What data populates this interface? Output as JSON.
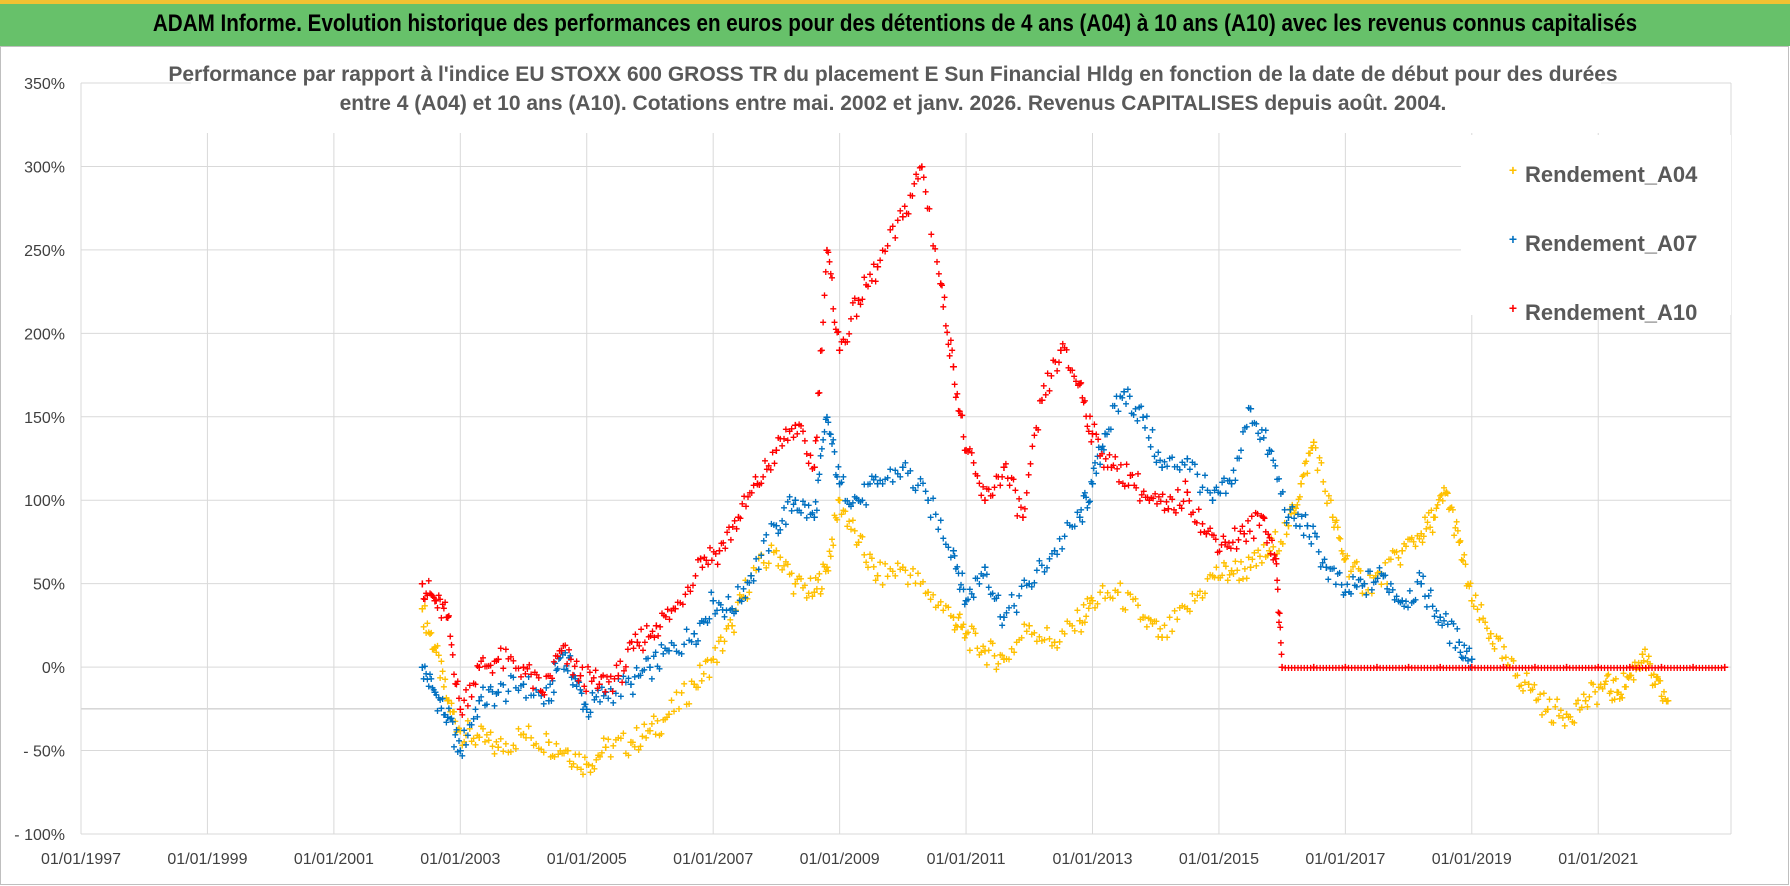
{
  "banner": {
    "title": "ADAM Informe. Evolution historique des performances en euros pour des détentions de 4 ans (A04) à 10 ans (A10) avec les revenus connus capitalisés"
  },
  "colors": {
    "banner_bg": "#67c16a",
    "banner_accent": "#f1c232",
    "A04": "#ffc000",
    "A07": "#0070c0",
    "A10": "#ff0000"
  },
  "chart_data": {
    "type": "scatter",
    "title_line1": "Performance par rapport à l'indice EU STOXX 600 GROSS TR  du placement E Sun Financial Hldg  en fonction de la date de début pour des durées",
    "title_line2": "entre 4 (A04) et 10 ans (A10).  Cotations entre mai. 2002 et janv. 2026. Revenus CAPITALISES depuis août. 2004.",
    "xlabel": "",
    "ylabel": "",
    "xlim": [
      1997.0,
      2023.1
    ],
    "ylim": [
      -100,
      350
    ],
    "grid": true,
    "legend_position": "top-right",
    "y_ticks": [
      -100,
      -50,
      0,
      50,
      100,
      150,
      200,
      250,
      300,
      350
    ],
    "y_tick_labels": [
      "- 100%",
      "- 50%",
      "0%",
      "50%",
      "100%",
      "150%",
      "200%",
      "250%",
      "300%",
      "350%"
    ],
    "x_ticks": [
      1997,
      1999,
      2001,
      2003,
      2005,
      2007,
      2009,
      2011,
      2013,
      2015,
      2017,
      2019,
      2021
    ],
    "x_tick_labels": [
      "01/01/1997",
      "01/01/1999",
      "01/01/2001",
      "01/01/2003",
      "01/01/2005",
      "01/01/2007",
      "01/01/2009",
      "01/01/2011",
      "01/01/2013",
      "01/01/2015",
      "01/01/2017",
      "01/01/2019",
      "01/01/2021"
    ],
    "series": [
      {
        "name": "Rendement_A04",
        "color": "#ffc000",
        "x": [
          2002.4,
          2002.6,
          2002.8,
          2003.0,
          2003.3,
          2003.6,
          2004.0,
          2004.4,
          2004.7,
          2005.0,
          2005.3,
          2005.7,
          2006.0,
          2006.3,
          2006.7,
          2007.0,
          2007.3,
          2007.6,
          2008.0,
          2008.3,
          2008.6,
          2008.8,
          2009.0,
          2009.3,
          2009.6,
          2010.0,
          2010.4,
          2010.8,
          2011.0,
          2011.3,
          2011.6,
          2012.0,
          2012.4,
          2012.8,
          2013.0,
          2013.4,
          2013.8,
          2014.1,
          2014.5,
          2014.9,
          2015.2,
          2015.5,
          2015.8,
          2016.1,
          2016.3,
          2016.5,
          2016.8,
          2017.0,
          2017.3,
          2017.6,
          2017.9,
          2018.2,
          2018.4,
          2018.6,
          2018.8,
          2019.0,
          2019.3,
          2019.6,
          2019.9,
          2020.2,
          2020.5,
          2020.8,
          2021.1,
          2021.3,
          2021.5,
          2021.7,
          2021.9,
          2022.1
        ],
        "y": [
          35,
          12,
          -20,
          -38,
          -42,
          -48,
          -40,
          -45,
          -50,
          -58,
          -48,
          -45,
          -38,
          -28,
          -10,
          5,
          25,
          55,
          70,
          50,
          45,
          60,
          100,
          75,
          55,
          60,
          45,
          30,
          20,
          10,
          5,
          25,
          15,
          28,
          40,
          45,
          30,
          18,
          35,
          55,
          58,
          60,
          70,
          85,
          110,
          135,
          90,
          65,
          50,
          55,
          70,
          80,
          90,
          105,
          75,
          40,
          20,
          0,
          -10,
          -25,
          -28,
          -20,
          -10,
          -15,
          -5,
          8,
          -10,
          -20
        ]
      },
      {
        "name": "Rendement_A07",
        "color": "#0070c0",
        "x": [
          2002.4,
          2002.6,
          2002.8,
          2003.0,
          2003.3,
          2003.6,
          2004.0,
          2004.4,
          2004.6,
          2004.8,
          2005.0,
          2005.3,
          2005.7,
          2006.0,
          2006.3,
          2006.7,
          2007.0,
          2007.3,
          2007.6,
          2008.0,
          2008.3,
          2008.6,
          2008.8,
          2009.0,
          2009.3,
          2009.6,
          2010.0,
          2010.4,
          2010.8,
          2011.0,
          2011.3,
          2011.6,
          2012.0,
          2012.4,
          2012.8,
          2013.0,
          2013.2,
          2013.5,
          2013.8,
          2014.1,
          2014.5,
          2014.9,
          2015.2,
          2015.5,
          2015.8,
          2016.1,
          2016.4,
          2016.7,
          2017.0,
          2017.3,
          2017.6,
          2017.9,
          2018.2,
          2018.5,
          2018.8,
          2019.0
        ],
        "y": [
          0,
          -15,
          -30,
          -50,
          -20,
          -15,
          -10,
          -20,
          10,
          -5,
          -25,
          -15,
          -10,
          0,
          10,
          20,
          40,
          35,
          55,
          85,
          100,
          90,
          150,
          110,
          100,
          110,
          120,
          100,
          70,
          40,
          60,
          30,
          50,
          70,
          90,
          110,
          140,
          165,
          150,
          120,
          125,
          100,
          110,
          155,
          130,
          90,
          85,
          60,
          45,
          50,
          55,
          40,
          50,
          30,
          15,
          5
        ]
      },
      {
        "name": "Rendement_A10",
        "color": "#ff0000",
        "x": [
          2002.4,
          2002.6,
          2002.8,
          2003.0,
          2003.3,
          2003.6,
          2004.0,
          2004.3,
          2004.6,
          2004.9,
          2005.2,
          2005.5,
          2005.8,
          2006.1,
          2006.4,
          2006.8,
          2007.1,
          2007.4,
          2007.7,
          2008.0,
          2008.3,
          2008.6,
          2008.8,
          2009.0,
          2009.3,
          2009.6,
          2010.0,
          2010.3,
          2010.6,
          2010.8,
          2011.0,
          2011.3,
          2011.6,
          2011.9,
          2012.2,
          2012.5,
          2012.8,
          2013.0,
          2013.3,
          2013.6,
          2013.9,
          2014.2,
          2014.5,
          2014.8,
          2015.1,
          2015.4,
          2015.7,
          2015.9,
          2016.0,
          2016.5,
          2017.0,
          2017.5,
          2018.0,
          2018.5,
          2019.0,
          2019.5,
          2020.0,
          2020.5,
          2021.0,
          2021.5,
          2022.0,
          2022.5,
          2023.0
        ],
        "y": [
          50,
          40,
          30,
          -25,
          0,
          5,
          0,
          -15,
          10,
          -5,
          -10,
          -5,
          15,
          25,
          35,
          65,
          70,
          90,
          110,
          130,
          145,
          120,
          250,
          190,
          220,
          240,
          270,
          300,
          230,
          180,
          130,
          100,
          120,
          90,
          160,
          190,
          170,
          140,
          120,
          115,
          100,
          95,
          105,
          80,
          75,
          80,
          90,
          65,
          0,
          0,
          0,
          0,
          0,
          0,
          0,
          0,
          0,
          0,
          0,
          0,
          0,
          0,
          0
        ]
      }
    ]
  }
}
